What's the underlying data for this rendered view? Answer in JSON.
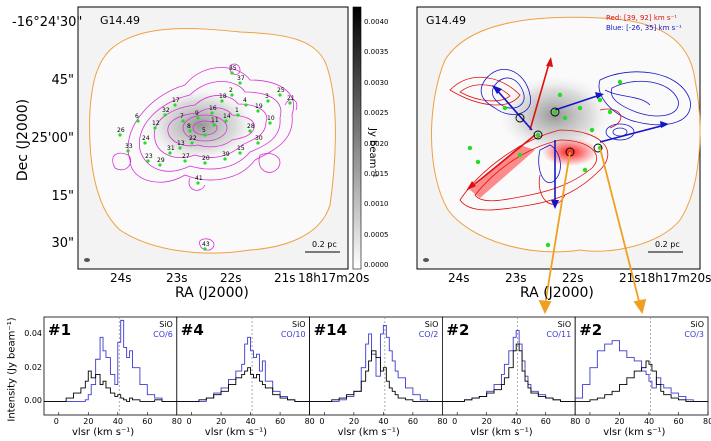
{
  "left_map": {
    "title": "G14.49",
    "dec_ticks": [
      "-16°24'30\"",
      "45\"",
      "25'00\"",
      "15\"",
      "30\""
    ],
    "ra_ticks": [
      "24s",
      "23s",
      "22s",
      "21s",
      "18h17m20s"
    ],
    "xlabel": "RA (J2000)",
    "ylabel": "Dec (J2000)",
    "scalebar": "0.2 pc",
    "colorbar_ticks": [
      "0.0040",
      "0.0035",
      "0.0030",
      "0.0025",
      "0.0020",
      "0.0015",
      "0.0010",
      "0.0005",
      "0.0000"
    ],
    "colorbar_label": "Jy beam⁻¹",
    "cores": [
      "26",
      "33",
      "6",
      "24",
      "12",
      "32",
      "17",
      "7",
      "8",
      "9",
      "16",
      "18",
      "2",
      "13",
      "22",
      "5",
      "11",
      "14",
      "1",
      "4",
      "19",
      "3",
      "25",
      "21",
      "10",
      "28",
      "30",
      "15",
      "39",
      "20",
      "27",
      "31",
      "29",
      "23",
      "35",
      "37",
      "41",
      "43"
    ]
  },
  "right_map": {
    "title": "G14.49",
    "red_label": "Red: [39, 92] km s⁻¹",
    "blue_label": "Blue: [-26, 35] km s⁻¹",
    "xlabel": "RA (J2000)",
    "ra_ticks": [
      "24s",
      "23s",
      "22s",
      "21s",
      "18h17m20s"
    ],
    "scalebar": "0.2 pc",
    "colors": {
      "red": "#e01010",
      "blue": "#1515c8",
      "arrow": "#f0a020"
    }
  },
  "spectra": {
    "ylabel": "Intensity (Jy beam⁻¹)",
    "xlabel": "vlsr (km s⁻¹)",
    "y_ticks": [
      "0.04",
      "0.02",
      "0.00"
    ],
    "x_ticks": [
      "0",
      "20",
      "40",
      "60",
      "80"
    ],
    "panels": [
      {
        "id": "#1",
        "line1": "SiO",
        "line2": "CO/6"
      },
      {
        "id": "#4",
        "line1": "SiO",
        "line2": "CO/10"
      },
      {
        "id": "#14",
        "line1": "SiO",
        "line2": "CO/2"
      },
      {
        "id": "#2",
        "line1": "SiO",
        "line2": "CO/11"
      },
      {
        "id": "#2",
        "line1": "SiO",
        "line2": "CO/3"
      }
    ]
  },
  "chart_data": [
    {
      "type": "line",
      "title": "#1",
      "xlabel": "vlsr (km s⁻¹)",
      "ylabel": "Intensity (Jy beam⁻¹)",
      "xlim": [
        -10,
        80
      ],
      "ylim": [
        -0.008,
        0.05
      ],
      "vline": 41,
      "x": [
        -10,
        0,
        5,
        10,
        15,
        18,
        20,
        22,
        25,
        28,
        30,
        32,
        35,
        38,
        40,
        42,
        44,
        46,
        48,
        50,
        55,
        60,
        65,
        70,
        75,
        80
      ],
      "series": [
        {
          "name": "SiO",
          "color": "#000000",
          "values": [
            0,
            0,
            0.002,
            0.005,
            0.008,
            0.012,
            0.018,
            0.014,
            0.016,
            0.01,
            0.012,
            0.008,
            0.005,
            0.003,
            0.004,
            0.002,
            0.001,
            0.0,
            0.002,
            0.001,
            0.0,
            0.0,
            0.001,
            0.0,
            0.0,
            0.0
          ]
        },
        {
          "name": "CO/6",
          "color": "#3a3ad0",
          "values": [
            0,
            0,
            0,
            0,
            0,
            0.001,
            0.004,
            0.01,
            0.025,
            0.038,
            0.03,
            0.026,
            0.016,
            0.01,
            0.035,
            0.048,
            0.032,
            0.026,
            0.03,
            0.02,
            0.01,
            0.004,
            0.002,
            0.0,
            0.0,
            0.0
          ]
        }
      ]
    },
    {
      "type": "line",
      "title": "#4",
      "xlabel": "vlsr (km s⁻¹)",
      "ylabel": "Intensity (Jy beam⁻¹)",
      "xlim": [
        -10,
        80
      ],
      "ylim": [
        -0.008,
        0.05
      ],
      "vline": 41,
      "x": [
        -10,
        0,
        5,
        10,
        15,
        20,
        25,
        30,
        34,
        36,
        38,
        40,
        42,
        44,
        46,
        48,
        50,
        55,
        60,
        65,
        70,
        75,
        80
      ],
      "series": [
        {
          "name": "SiO",
          "color": "#000000",
          "values": [
            0,
            0,
            0.001,
            0.002,
            0.004,
            0.006,
            0.01,
            0.014,
            0.016,
            0.018,
            0.02,
            0.016,
            0.014,
            0.016,
            0.012,
            0.01,
            0.008,
            0.004,
            0.002,
            0.001,
            0.0,
            0.0,
            0.0
          ]
        },
        {
          "name": "CO/10",
          "color": "#3a3ad0",
          "values": [
            0,
            0,
            0,
            0.002,
            0.005,
            0.008,
            0.013,
            0.018,
            0.022,
            0.034,
            0.038,
            0.03,
            0.026,
            0.028,
            0.018,
            0.024,
            0.012,
            0.006,
            0.003,
            0.001,
            0.0,
            0.0,
            0.0
          ]
        }
      ]
    },
    {
      "type": "line",
      "title": "#14",
      "xlabel": "vlsr (km s⁻¹)",
      "ylabel": "Intensity (Jy beam⁻¹)",
      "xlim": [
        -10,
        80
      ],
      "ylim": [
        -0.008,
        0.05
      ],
      "vline": 41,
      "x": [
        -10,
        0,
        5,
        10,
        15,
        20,
        25,
        28,
        30,
        32,
        35,
        38,
        40,
        42,
        44,
        46,
        48,
        50,
        55,
        60,
        65,
        70,
        75,
        80
      ],
      "series": [
        {
          "name": "SiO",
          "color": "#000000",
          "values": [
            0,
            0,
            0.001,
            0.002,
            0.004,
            0.006,
            0.012,
            0.018,
            0.024,
            0.03,
            0.026,
            0.018,
            0.02,
            0.012,
            0.008,
            0.006,
            0.004,
            0.002,
            0.001,
            0.0,
            0.0,
            0.0,
            0.0,
            0.0
          ]
        },
        {
          "name": "CO/2",
          "color": "#3a3ad0",
          "values": [
            0,
            0,
            0,
            0.001,
            0.003,
            0.006,
            0.02,
            0.034,
            0.04,
            0.028,
            0.015,
            0.04,
            0.045,
            0.038,
            0.03,
            0.024,
            0.018,
            0.014,
            0.008,
            0.004,
            0.001,
            0.0,
            0.0,
            0.0
          ]
        }
      ]
    },
    {
      "type": "line",
      "title": "#2",
      "xlabel": "vlsr (km s⁻¹)",
      "ylabel": "Intensity (Jy beam⁻¹)",
      "xlim": [
        -10,
        80
      ],
      "ylim": [
        -0.008,
        0.05
      ],
      "vline": 41,
      "x": [
        -10,
        0,
        5,
        10,
        15,
        20,
        25,
        30,
        32,
        35,
        38,
        40,
        42,
        44,
        46,
        48,
        50,
        55,
        60,
        65,
        70,
        75,
        80
      ],
      "series": [
        {
          "name": "SiO",
          "color": "#000000",
          "values": [
            0,
            0,
            0.001,
            0.002,
            0.003,
            0.005,
            0.007,
            0.01,
            0.014,
            0.02,
            0.03,
            0.034,
            0.03,
            0.018,
            0.012,
            0.008,
            0.005,
            0.003,
            0.002,
            0.001,
            0.0,
            0.0,
            0.0
          ]
        },
        {
          "name": "CO/11",
          "color": "#3a3ad0",
          "values": [
            0,
            0,
            0.001,
            0.002,
            0.003,
            0.006,
            0.01,
            0.016,
            0.022,
            0.03,
            0.038,
            0.042,
            0.034,
            0.024,
            0.015,
            0.01,
            0.006,
            0.004,
            0.002,
            0.001,
            0.0,
            0.0,
            0.0
          ]
        }
      ]
    },
    {
      "type": "line",
      "title": "#2",
      "xlabel": "vlsr (km s⁻¹)",
      "ylabel": "Intensity (Jy beam⁻¹)",
      "xlim": [
        -10,
        80
      ],
      "ylim": [
        -0.008,
        0.05
      ],
      "vline": 41,
      "x": [
        -10,
        -5,
        0,
        5,
        10,
        15,
        20,
        25,
        30,
        35,
        38,
        40,
        42,
        45,
        48,
        50,
        55,
        60,
        65,
        70,
        75,
        80
      ],
      "series": [
        {
          "name": "SiO",
          "color": "#000000",
          "values": [
            0,
            0,
            0.001,
            0.002,
            0.004,
            0.006,
            0.01,
            0.014,
            0.018,
            0.02,
            0.024,
            0.022,
            0.018,
            0.01,
            0.006,
            0.004,
            0.002,
            0.001,
            0.0,
            0.0,
            0.0,
            0.0
          ]
        },
        {
          "name": "CO/3",
          "color": "#3a3ad0",
          "values": [
            0.002,
            0.01,
            0.02,
            0.03,
            0.034,
            0.036,
            0.03,
            0.026,
            0.024,
            0.018,
            0.016,
            0.012,
            0.008,
            0.014,
            0.01,
            0.008,
            0.005,
            0.003,
            0.001,
            0.0,
            0.0,
            0.0
          ]
        }
      ]
    }
  ]
}
